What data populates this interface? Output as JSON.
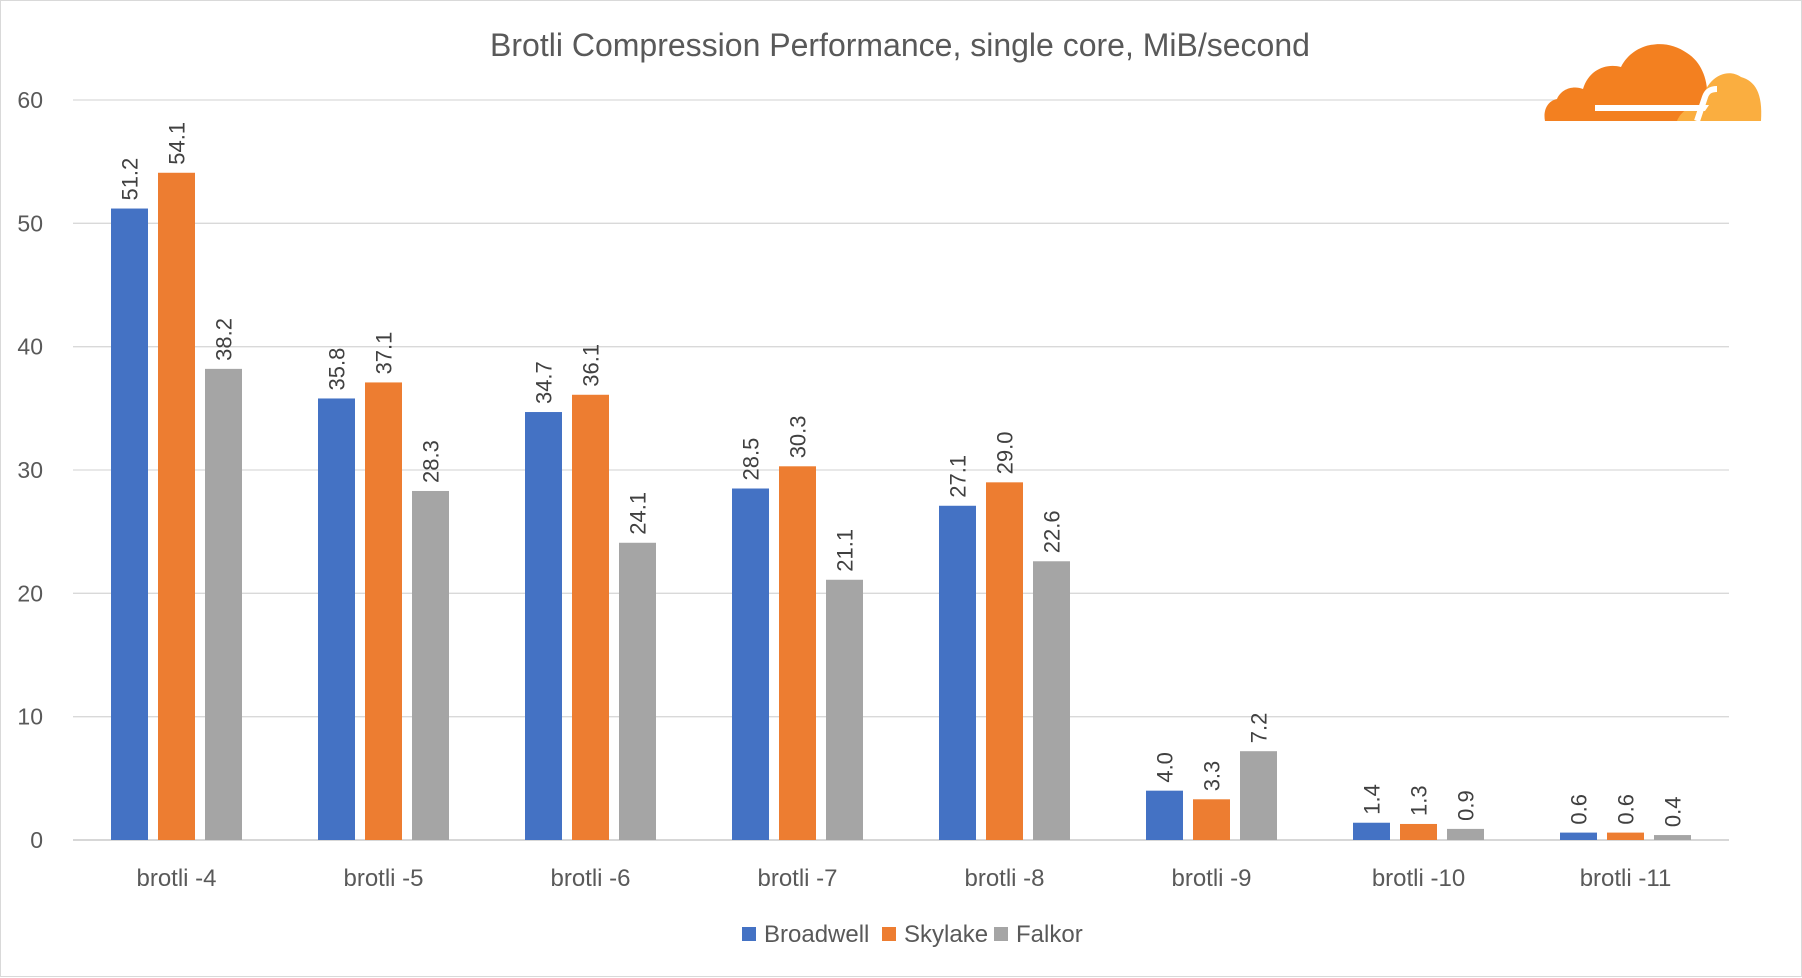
{
  "chart_data": {
    "type": "bar",
    "title": "Brotli Compression Performance, single core, MiB/second",
    "xlabel": "",
    "ylabel": "",
    "ylim": [
      0,
      60
    ],
    "yticks": [
      0,
      10,
      20,
      30,
      40,
      50,
      60
    ],
    "grid": true,
    "legend_position": "bottom",
    "data_labels": "vertical, one decimal",
    "categories": [
      "brotli -4",
      "brotli -5",
      "brotli -6",
      "brotli -7",
      "brotli -8",
      "brotli -9",
      "brotli -10",
      "brotli -11"
    ],
    "series": [
      {
        "name": "Broadwell",
        "color": "#4472c4",
        "values": [
          51.2,
          35.8,
          34.7,
          28.5,
          27.1,
          4.0,
          1.4,
          0.6
        ]
      },
      {
        "name": "Skylake",
        "color": "#ed7d31",
        "values": [
          54.1,
          37.1,
          36.1,
          30.3,
          29.0,
          3.3,
          1.3,
          0.6
        ]
      },
      {
        "name": "Falkor",
        "color": "#a5a5a5",
        "values": [
          38.2,
          28.3,
          24.1,
          21.1,
          22.6,
          7.2,
          0.9,
          0.4
        ]
      }
    ]
  },
  "logo": {
    "name": "cloud-logo",
    "colors": [
      "#f38020",
      "#faae40"
    ]
  }
}
